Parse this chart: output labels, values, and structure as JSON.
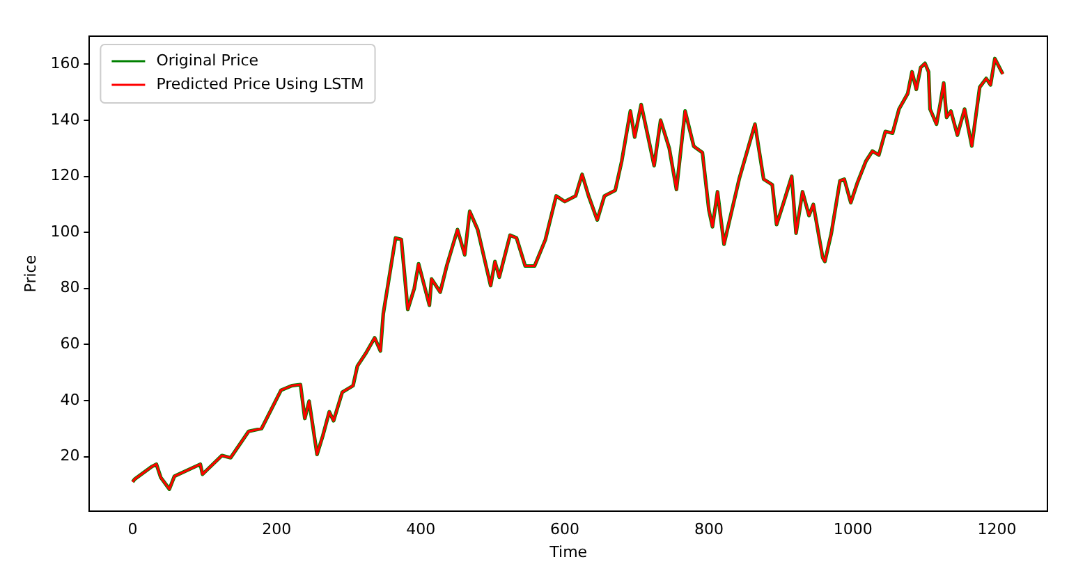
{
  "chart_data": {
    "type": "line",
    "xlabel": "Time",
    "ylabel": "Price",
    "x": [
      0,
      3,
      27,
      33,
      39,
      51,
      58,
      94,
      97,
      124,
      136,
      161,
      179,
      206,
      221,
      233,
      239,
      245,
      256,
      264,
      273,
      279,
      291,
      306,
      312,
      324,
      336,
      344,
      348,
      365,
      373,
      382,
      391,
      397,
      412,
      415,
      427,
      436,
      451,
      461,
      468,
      479,
      497,
      503,
      509,
      524,
      533,
      545,
      558,
      573,
      588,
      600,
      615,
      624,
      633,
      645,
      655,
      670,
      679,
      691,
      697,
      706,
      715,
      724,
      733,
      745,
      755,
      767,
      779,
      791,
      800,
      805,
      812,
      821,
      842,
      864,
      876,
      888,
      894,
      903,
      915,
      921,
      930,
      939,
      945,
      958,
      961,
      970,
      982,
      988,
      997,
      1006,
      1018,
      1027,
      1036,
      1045,
      1055,
      1064,
      1076,
      1082,
      1088,
      1094,
      1100,
      1105,
      1107,
      1116,
      1121,
      1126,
      1130,
      1136,
      1145,
      1155,
      1165,
      1176,
      1185,
      1191,
      1197,
      1208
    ],
    "series": [
      {
        "name": "Original Price",
        "color": "#008000",
        "values": [
          11,
          12,
          16.5,
          17.3,
          12.6,
          8.4,
          13,
          17.3,
          13.7,
          20.4,
          19.6,
          29,
          30,
          43.7,
          45.3,
          45.7,
          33.6,
          39.8,
          20.8,
          27.4,
          36,
          32.8,
          43,
          45.3,
          52.3,
          57,
          62.4,
          57.7,
          71,
          98,
          97.5,
          72.5,
          80,
          88.8,
          74,
          83.4,
          78.7,
          88,
          101,
          92,
          107.5,
          101,
          81,
          89.6,
          84,
          99,
          98,
          88,
          88,
          97.4,
          113,
          111,
          113,
          120.7,
          113,
          104.4,
          113,
          115,
          125.4,
          143.3,
          134,
          145.6,
          134.8,
          123.8,
          140,
          130,
          115.3,
          143.3,
          130.7,
          128.5,
          108,
          102,
          114.5,
          95.8,
          119,
          138.6,
          119,
          117,
          102.8,
          110,
          120,
          99.7,
          114.5,
          106,
          110,
          91,
          89.6,
          99.7,
          118.4,
          119,
          110.6,
          117.6,
          125.4,
          129,
          127.6,
          136,
          135.4,
          144,
          149.5,
          157.3,
          151,
          158.8,
          160.3,
          157.3,
          144,
          138.6,
          145.6,
          153.3,
          141,
          143.3,
          134.7,
          144,
          130.8,
          151.8,
          154.9,
          152.6,
          162,
          156.5
        ]
      },
      {
        "name": "Predicted Price Using LSTM",
        "color": "#ff0000",
        "values": [
          11,
          12,
          16.5,
          17.3,
          12.6,
          8.4,
          13,
          17.3,
          13.7,
          20.4,
          19.6,
          29,
          30,
          43.7,
          45.3,
          45.7,
          33.6,
          39.8,
          20.8,
          27.4,
          36,
          32.8,
          43,
          45.3,
          52.3,
          57,
          62.4,
          57.7,
          71,
          98,
          97.5,
          72.5,
          80,
          88.8,
          74,
          83.4,
          78.7,
          88,
          101,
          92,
          107.5,
          101,
          81,
          89.6,
          84,
          99,
          98,
          88,
          88,
          97.4,
          113,
          111,
          113,
          120.7,
          113,
          104.4,
          113,
          115,
          125.4,
          143.3,
          134,
          145.6,
          134.8,
          123.8,
          140,
          130,
          115.3,
          143.3,
          130.7,
          128.5,
          108,
          102,
          114.5,
          95.8,
          119,
          138.6,
          119,
          117,
          102.8,
          110,
          120,
          99.7,
          114.5,
          106,
          110,
          91,
          89.6,
          99.7,
          118.4,
          119,
          110.6,
          117.6,
          125.4,
          129,
          127.6,
          136,
          135.4,
          144,
          149.5,
          157.3,
          151,
          158.8,
          160.3,
          157.3,
          144,
          138.6,
          145.6,
          153.3,
          141,
          143.3,
          134.7,
          144,
          130.8,
          151.8,
          154.9,
          152.6,
          162,
          156.5
        ]
      }
    ],
    "xlim": [
      -60,
      1270
    ],
    "xticks": [
      0,
      200,
      400,
      600,
      800,
      1000,
      1200
    ],
    "ylim": [
      0.5,
      170
    ],
    "yticks": [
      20,
      40,
      60,
      80,
      100,
      120,
      140,
      160
    ],
    "grid": false,
    "legend": "top left",
    "marker": "none",
    "line_style": "solid"
  }
}
